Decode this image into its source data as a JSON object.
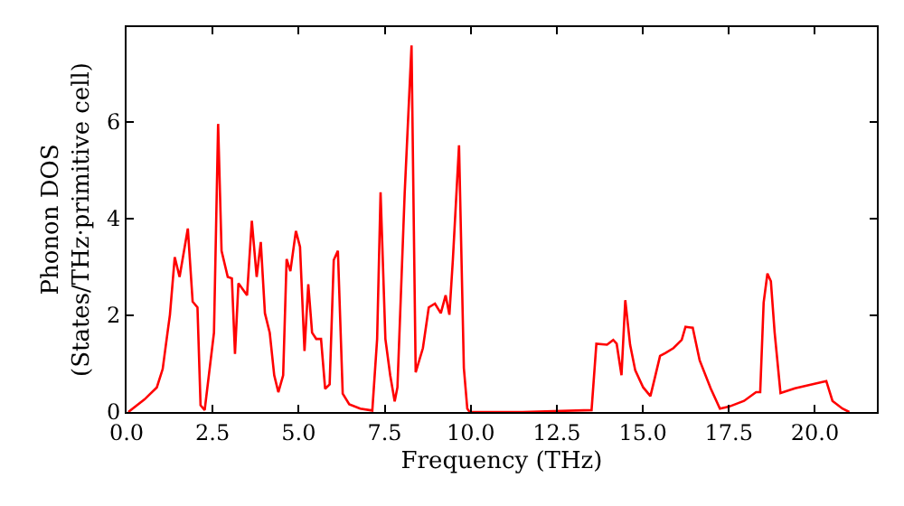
{
  "chart_data": {
    "type": "line",
    "xlabel": "Frequency (THz)",
    "ylabel": "Phonon DOS\n(States/THz·primitive cell)",
    "xlim": [
      0,
      21.8
    ],
    "ylim": [
      0,
      7.95
    ],
    "xticks": [
      {
        "value": 0,
        "label": "0.0"
      },
      {
        "value": 2.5,
        "label": "2.5"
      },
      {
        "value": 5,
        "label": "5.0"
      },
      {
        "value": 7.5,
        "label": "7.5"
      },
      {
        "value": 10,
        "label": "10.0"
      },
      {
        "value": 12.5,
        "label": "12.5"
      },
      {
        "value": 15,
        "label": "15.0"
      },
      {
        "value": 17.5,
        "label": "17.5"
      },
      {
        "value": 20,
        "label": "20.0"
      }
    ],
    "yticks": [
      0,
      2,
      4,
      6
    ],
    "marker": "none",
    "line_style": "solid",
    "x": [
      0.05,
      0.52,
      0.88,
      1.05,
      1.19,
      1.26,
      1.4,
      1.54,
      1.78,
      1.92,
      2.06,
      2.15,
      2.27,
      2.54,
      2.66,
      2.76,
      2.94,
      3.06,
      3.15,
      3.25,
      3.5,
      3.64,
      3.78,
      3.9,
      4.02,
      4.16,
      4.29,
      4.41,
      4.55,
      4.65,
      4.76,
      4.92,
      5.04,
      5.17,
      5.28,
      5.39,
      5.51,
      5.65,
      5.77,
      5.9,
      6.02,
      6.14,
      6.28,
      6.47,
      6.79,
      7.14,
      7.28,
      7.38,
      7.52,
      7.66,
      7.79,
      7.87,
      8.08,
      8.28,
      8.4,
      8.61,
      8.78,
      8.96,
      9.13,
      9.27,
      9.38,
      9.48,
      9.66,
      9.8,
      9.9,
      9.97,
      11.5,
      13.51,
      13.65,
      13.96,
      14.14,
      14.24,
      14.38,
      14.49,
      14.63,
      14.78,
      15.01,
      15.22,
      15.36,
      15.5,
      15.66,
      15.89,
      16.13,
      16.24,
      16.45,
      16.65,
      16.97,
      17.24,
      17.5,
      17.94,
      18.29,
      18.41,
      18.51,
      18.62,
      18.72,
      18.83,
      19.0,
      19.42,
      20.33,
      20.51,
      20.8,
      21.0
    ],
    "series": [
      {
        "color": "#ff0000",
        "values": [
          0,
          0.26,
          0.51,
          0.89,
          1.64,
          2.01,
          3.2,
          2.79,
          3.79,
          2.28,
          2.16,
          0.14,
          0.04,
          1.64,
          5.95,
          3.33,
          2.79,
          2.76,
          1.2,
          2.66,
          2.41,
          3.95,
          2.79,
          3.51,
          2.04,
          1.64,
          0.76,
          0.41,
          0.76,
          3.16,
          2.91,
          3.74,
          3.41,
          1.26,
          2.64,
          1.64,
          1.51,
          1.51,
          0.48,
          0.57,
          3.14,
          3.33,
          0.38,
          0.16,
          0.07,
          0.03,
          1.51,
          4.54,
          1.51,
          0.76,
          0.22,
          0.51,
          4.51,
          7.57,
          0.82,
          1.32,
          2.16,
          2.24,
          2.04,
          2.41,
          2.01,
          3.14,
          5.51,
          0.91,
          0.07,
          0,
          0,
          0.04,
          1.41,
          1.39,
          1.49,
          1.41,
          0.76,
          2.31,
          1.39,
          0.86,
          0.51,
          0.33,
          0.74,
          1.16,
          1.22,
          1.32,
          1.49,
          1.76,
          1.74,
          1.07,
          0.49,
          0.07,
          0.11,
          0.23,
          0.41,
          0.41,
          2.26,
          2.86,
          2.7,
          1.64,
          0.39,
          0.49,
          0.64,
          0.23,
          0.07,
          0
        ]
      }
    ]
  }
}
